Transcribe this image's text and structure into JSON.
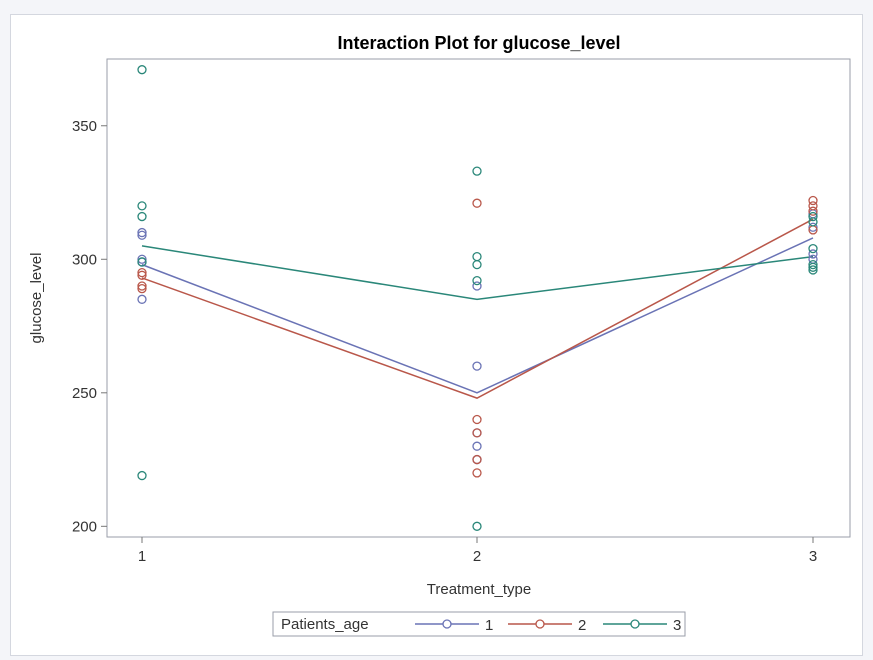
{
  "chart_data": {
    "type": "line",
    "title": "Interaction Plot for glucose_level",
    "xlabel": "Treatment_type",
    "ylabel": "glucose_level",
    "x": [
      1,
      2,
      3
    ],
    "xticks": [
      "1",
      "2",
      "3"
    ],
    "yticks": [
      200,
      250,
      300,
      350
    ],
    "ylim": [
      196,
      375
    ],
    "grid": false,
    "legend": {
      "position": "bottom",
      "title": "Patients_age"
    },
    "series": [
      {
        "name": "1",
        "color": "#6a73b5",
        "means": [
          298,
          250,
          308
        ],
        "points": [
          {
            "x": 1,
            "y": 310
          },
          {
            "x": 1,
            "y": 309
          },
          {
            "x": 1,
            "y": 300
          },
          {
            "x": 1,
            "y": 299
          },
          {
            "x": 1,
            "y": 285
          },
          {
            "x": 2,
            "y": 290
          },
          {
            "x": 2,
            "y": 260
          },
          {
            "x": 2,
            "y": 235
          },
          {
            "x": 2,
            "y": 230
          },
          {
            "x": 2,
            "y": 225
          },
          {
            "x": 3,
            "y": 317
          },
          {
            "x": 3,
            "y": 312
          },
          {
            "x": 3,
            "y": 302
          },
          {
            "x": 3,
            "y": 300
          }
        ]
      },
      {
        "name": "2",
        "color": "#b9574a",
        "means": [
          293,
          248,
          315
        ],
        "points": [
          {
            "x": 1,
            "y": 295
          },
          {
            "x": 1,
            "y": 294
          },
          {
            "x": 1,
            "y": 290
          },
          {
            "x": 1,
            "y": 289
          },
          {
            "x": 2,
            "y": 321
          },
          {
            "x": 2,
            "y": 240
          },
          {
            "x": 2,
            "y": 235
          },
          {
            "x": 2,
            "y": 225
          },
          {
            "x": 2,
            "y": 220
          },
          {
            "x": 3,
            "y": 322
          },
          {
            "x": 3,
            "y": 320
          },
          {
            "x": 3,
            "y": 318
          },
          {
            "x": 3,
            "y": 311
          }
        ]
      },
      {
        "name": "3",
        "color": "#2a8779",
        "means": [
          305,
          285,
          301
        ],
        "points": [
          {
            "x": 1,
            "y": 371
          },
          {
            "x": 1,
            "y": 320
          },
          {
            "x": 1,
            "y": 316
          },
          {
            "x": 1,
            "y": 299
          },
          {
            "x": 1,
            "y": 219
          },
          {
            "x": 2,
            "y": 333
          },
          {
            "x": 2,
            "y": 301
          },
          {
            "x": 2,
            "y": 298
          },
          {
            "x": 2,
            "y": 292
          },
          {
            "x": 2,
            "y": 200
          },
          {
            "x": 3,
            "y": 316
          },
          {
            "x": 3,
            "y": 314
          },
          {
            "x": 3,
            "y": 304
          },
          {
            "x": 3,
            "y": 298
          },
          {
            "x": 3,
            "y": 297
          },
          {
            "x": 3,
            "y": 296
          }
        ]
      }
    ]
  }
}
